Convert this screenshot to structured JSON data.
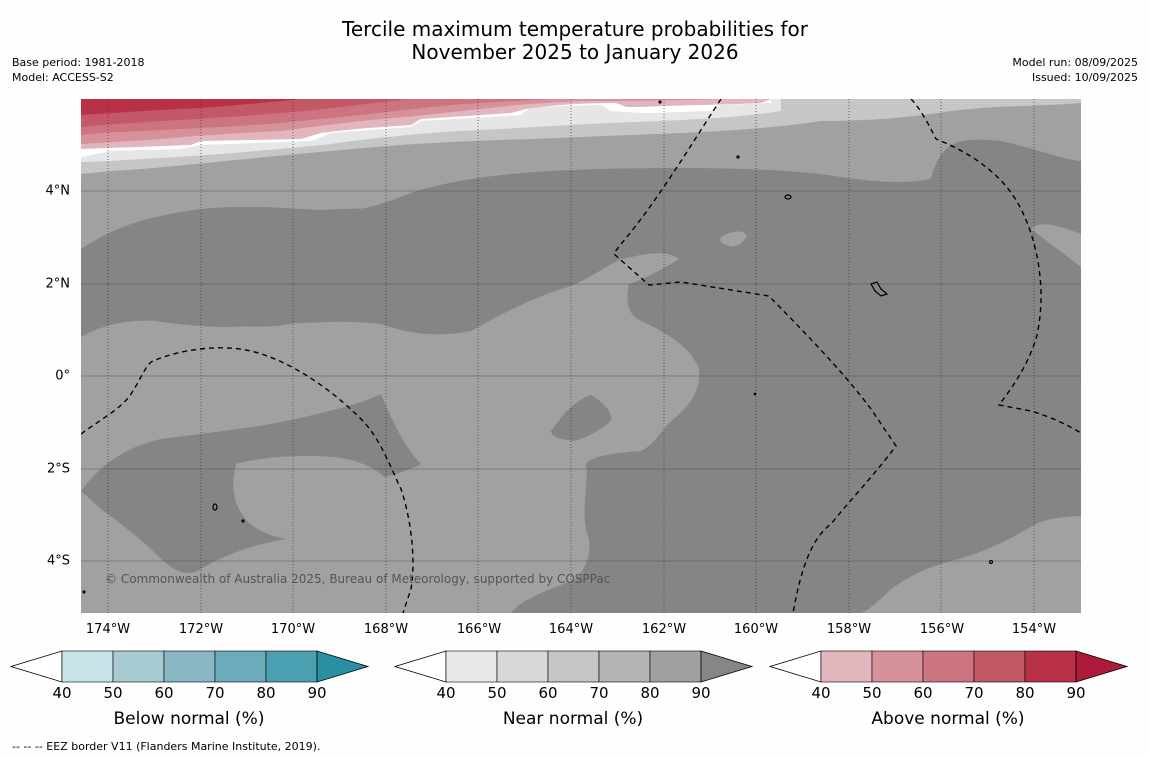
{
  "title_line1": "Tercile maximum temperature probabilities for",
  "title_line2": "November 2025 to January 2026",
  "base_period": "Base period: 1981-2018",
  "model": "Model: ACCESS-S2",
  "model_run": "Model run: 08/09/2025",
  "issued": "Issued: 10/09/2025",
  "copyright": "© Commonwealth of Australia 2025, Bureau of Meteorology, supported by COSPPac",
  "footnote": "-- -- -- EEZ border V11 (Flanders Marine Institute, 2019).",
  "lat_labels": [
    "4°N",
    "2°N",
    "0°",
    "2°S",
    "4°S"
  ],
  "lon_labels": [
    "174°W",
    "172°W",
    "170°W",
    "168°W",
    "166°W",
    "164°W",
    "162°W",
    "160°W",
    "158°W",
    "156°W",
    "154°W"
  ],
  "colorbars": [
    {
      "title": "Below normal (%)",
      "ticks": [
        "40",
        "50",
        "60",
        "70",
        "80",
        "90"
      ],
      "colors": [
        "#ffffff",
        "#c9e3ea",
        "#a8cbd2",
        "#89b8c4",
        "#6cabb9",
        "#4a9fb0",
        "#2b8fa3"
      ]
    },
    {
      "title": "Near normal (%)",
      "ticks": [
        "40",
        "50",
        "60",
        "70",
        "80",
        "90"
      ],
      "colors": [
        "#ffffff",
        "#e8e8e8",
        "#d8d8d8",
        "#c6c6c6",
        "#b4b4b4",
        "#a0a0a0",
        "#868686"
      ]
    },
    {
      "title": "Above normal (%)",
      "ticks": [
        "40",
        "50",
        "60",
        "70",
        "80",
        "90"
      ],
      "colors": [
        "#ffffff",
        "#e2b6bd",
        "#d7919b",
        "#cc747f",
        "#c35866",
        "#b93147",
        "#ad1a3a"
      ]
    }
  ]
}
